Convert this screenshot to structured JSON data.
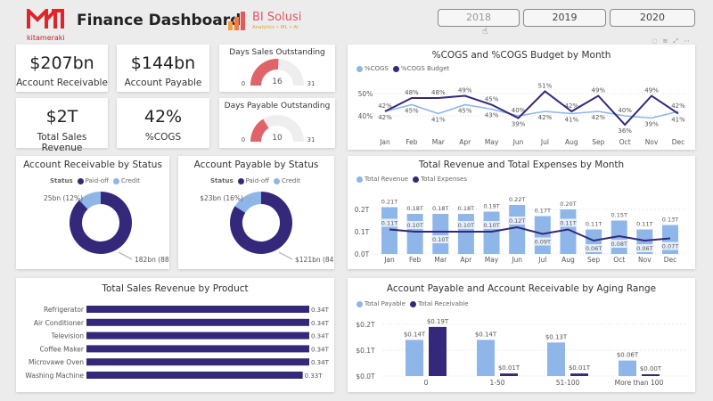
{
  "header": {
    "title": "Finance Dashboard",
    "brand_logo_text": "kitameraki",
    "partner_logo": {
      "name": "BI Solusi",
      "tagline": "Analytics • ML • AI"
    }
  },
  "year_filter": {
    "options": [
      "2018",
      "2019",
      "2020"
    ],
    "hovered": "2018"
  },
  "colors": {
    "dark": "#34287a",
    "light": "#8fb6e8",
    "gauge": "#e0636a",
    "gauge_bg": "#eeeeee"
  },
  "kpis": [
    {
      "value": "$207bn",
      "label": "Account Receivable"
    },
    {
      "value": "$144bn",
      "label": "Account Payable"
    },
    {
      "value": "$2T",
      "label": "Total Sales Revenue"
    },
    {
      "value": "42%",
      "label": "%COGS"
    }
  ],
  "gauges": [
    {
      "title": "Days Sales Outstanding",
      "value": 16,
      "min": 0,
      "max": 31
    },
    {
      "title": "Days Payable Outstanding",
      "value": 10,
      "min": 0,
      "max": 31
    }
  ],
  "visual_header_icons": [
    "pin-icon",
    "filter-icon",
    "focus-mode-icon",
    "more-options-icon"
  ],
  "chart_data": [
    {
      "type": "line",
      "title": "%COGS and %COGS Budget by Month",
      "categories": [
        "Jan",
        "Feb",
        "Mar",
        "Apr",
        "May",
        "Jun",
        "Jul",
        "Aug",
        "Sep",
        "Oct",
        "Nov",
        "Dec"
      ],
      "yticks": [
        "40%",
        "50%"
      ],
      "series": [
        {
          "name": "%COGS",
          "values": [
            42,
            45,
            41,
            45,
            43,
            40,
            42,
            41,
            42,
            40,
            39,
            42
          ]
        },
        {
          "name": "%COGS Budget",
          "values": [
            42,
            48,
            48,
            49,
            45,
            39,
            51,
            42,
            49,
            36,
            49,
            41
          ]
        }
      ]
    },
    {
      "type": "bar",
      "title": "Total Revenue and Total Expenses by Month",
      "categories": [
        "Jan",
        "Feb",
        "Mar",
        "Apr",
        "May",
        "Jun",
        "Jul",
        "Aug",
        "Sep",
        "Oct",
        "Nov",
        "Dec"
      ],
      "yticks": [
        "0.0T",
        "0.1T",
        "0.2T"
      ],
      "series": [
        {
          "name": "Total Revenue",
          "type": "bar",
          "values": [
            0.21,
            0.18,
            0.18,
            0.18,
            0.19,
            0.22,
            0.17,
            0.2,
            0.11,
            0.15,
            0.11,
            0.13
          ]
        },
        {
          "name": "Total Expenses",
          "type": "line",
          "values": [
            0.11,
            0.1,
            0.1,
            0.1,
            0.1,
            0.12,
            0.09,
            0.11,
            0.06,
            0.08,
            0.06,
            0.07
          ]
        }
      ]
    },
    {
      "type": "pie",
      "title": "Account Receivable by Status",
      "legend_title": "Status",
      "slices": [
        {
          "name": "Paid-off",
          "value": 182,
          "label": "182bn (88%)"
        },
        {
          "name": "Credit",
          "value": 25,
          "label": "25bn (12%)"
        }
      ]
    },
    {
      "type": "pie",
      "title": "Account Payable by Status",
      "legend_title": "Status",
      "slices": [
        {
          "name": "Paid-off",
          "value": 121,
          "label": "$121bn (84%)"
        },
        {
          "name": "Credit",
          "value": 23,
          "label": "$23bn (16%)"
        }
      ]
    },
    {
      "type": "bar",
      "title": "Total Sales Revenue by Product",
      "orientation": "horizontal",
      "categories": [
        "Refrigerator",
        "Air Conditioner",
        "Television",
        "Coffee Maker",
        "Microvawe Oven",
        "Washing Machine"
      ],
      "values": [
        0.34,
        0.34,
        0.34,
        0.34,
        0.34,
        0.33
      ],
      "labels": [
        "0.34T",
        "0.34T",
        "0.34T",
        "0.34T",
        "0.34T",
        "0.33T"
      ]
    },
    {
      "type": "bar",
      "title": "Account Payable and Account Receivable by Aging Range",
      "categories": [
        "0",
        "1-50",
        "51-100",
        "More than 100"
      ],
      "yticks": [
        "$0.0T",
        "$0.1T",
        "$0.2T"
      ],
      "series": [
        {
          "name": "Total Payable",
          "values": [
            0.14,
            0.14,
            0.13,
            0.06
          ]
        },
        {
          "name": "Total Receivable",
          "values": [
            0.19,
            0.01,
            0.01,
            0.0
          ]
        }
      ]
    }
  ]
}
